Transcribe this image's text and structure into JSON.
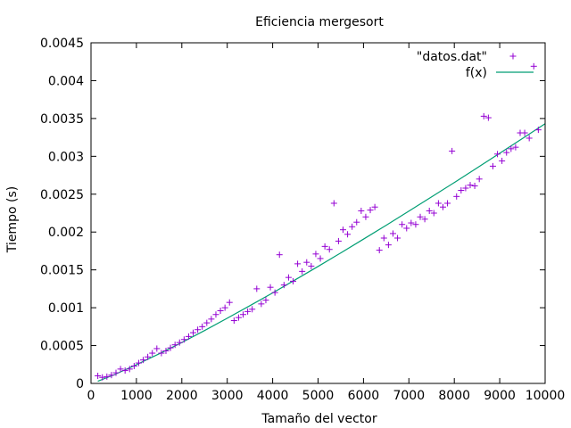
{
  "chart_data": {
    "type": "scatter",
    "title": "Eficiencia mergesort",
    "xlabel": "Tamaño del vector",
    "ylabel": "Tiempo (s)",
    "xlim": [
      0,
      10000
    ],
    "ylim": [
      0,
      0.0045
    ],
    "xticks": [
      0,
      1000,
      2000,
      3000,
      4000,
      5000,
      6000,
      7000,
      8000,
      9000,
      10000
    ],
    "xtick_labels": [
      "0",
      "1000",
      "2000",
      "3000",
      "4000",
      "5000",
      "6000",
      "7000",
      "8000",
      "9000",
      "10000"
    ],
    "yticks": [
      0,
      0.0005,
      0.001,
      0.0015,
      0.002,
      0.0025,
      0.003,
      0.0035,
      0.004,
      0.0045
    ],
    "ytick_labels": [
      "0",
      "0.0005",
      "0.001",
      "0.0015",
      "0.002",
      "0.0025",
      "0.003",
      "0.0035",
      "0.004",
      "0.0045"
    ],
    "grid": false,
    "legend_position": "top-right",
    "series": [
      {
        "name": "\"datos.dat\"",
        "type": "scatter",
        "marker": "+",
        "color": "#9400d3",
        "points": [
          [
            150,
            0.0001
          ],
          [
            250,
            8e-05
          ],
          [
            350,
            9e-05
          ],
          [
            450,
            0.00011
          ],
          [
            550,
            0.00014
          ],
          [
            650,
            0.00019
          ],
          [
            750,
            0.00017
          ],
          [
            850,
            0.00019
          ],
          [
            950,
            0.00023
          ],
          [
            1050,
            0.00027
          ],
          [
            1150,
            0.00031
          ],
          [
            1250,
            0.00035
          ],
          [
            1350,
            0.0004
          ],
          [
            1450,
            0.00046
          ],
          [
            1550,
            0.0004
          ],
          [
            1650,
            0.00043
          ],
          [
            1750,
            0.00047
          ],
          [
            1850,
            0.00051
          ],
          [
            1950,
            0.00054
          ],
          [
            2050,
            0.00058
          ],
          [
            2150,
            0.00062
          ],
          [
            2250,
            0.00067
          ],
          [
            2350,
            0.00071
          ],
          [
            2450,
            0.00075
          ],
          [
            2550,
            0.0008
          ],
          [
            2650,
            0.00085
          ],
          [
            2750,
            0.00091
          ],
          [
            2850,
            0.00096
          ],
          [
            2950,
            0.001
          ],
          [
            3050,
            0.00107
          ],
          [
            3150,
            0.00083
          ],
          [
            3250,
            0.00087
          ],
          [
            3350,
            0.00091
          ],
          [
            3450,
            0.00095
          ],
          [
            3550,
            0.00098
          ],
          [
            3650,
            0.00125
          ],
          [
            3750,
            0.00105
          ],
          [
            3850,
            0.0011
          ],
          [
            3950,
            0.00127
          ],
          [
            4050,
            0.0012
          ],
          [
            4150,
            0.0017
          ],
          [
            4250,
            0.0013
          ],
          [
            4350,
            0.0014
          ],
          [
            4450,
            0.00135
          ],
          [
            4550,
            0.00158
          ],
          [
            4650,
            0.00148
          ],
          [
            4750,
            0.0016
          ],
          [
            4850,
            0.00155
          ],
          [
            4950,
            0.00171
          ],
          [
            5050,
            0.00165
          ],
          [
            5150,
            0.00181
          ],
          [
            5250,
            0.00177
          ],
          [
            5350,
            0.00238
          ],
          [
            5450,
            0.00188
          ],
          [
            5550,
            0.00203
          ],
          [
            5650,
            0.00197
          ],
          [
            5750,
            0.00207
          ],
          [
            5850,
            0.00213
          ],
          [
            5950,
            0.00228
          ],
          [
            6050,
            0.0022
          ],
          [
            6150,
            0.00229
          ],
          [
            6250,
            0.00233
          ],
          [
            6350,
            0.00176
          ],
          [
            6450,
            0.00192
          ],
          [
            6550,
            0.00183
          ],
          [
            6650,
            0.00198
          ],
          [
            6750,
            0.00192
          ],
          [
            6850,
            0.0021
          ],
          [
            6950,
            0.00205
          ],
          [
            7050,
            0.00212
          ],
          [
            7150,
            0.0021
          ],
          [
            7250,
            0.0022
          ],
          [
            7350,
            0.00217
          ],
          [
            7450,
            0.00228
          ],
          [
            7550,
            0.00225
          ],
          [
            7650,
            0.00238
          ],
          [
            7750,
            0.00233
          ],
          [
            7850,
            0.00238
          ],
          [
            7950,
            0.00307
          ],
          [
            8050,
            0.00247
          ],
          [
            8150,
            0.00255
          ],
          [
            8250,
            0.00258
          ],
          [
            8350,
            0.00262
          ],
          [
            8450,
            0.00261
          ],
          [
            8550,
            0.0027
          ],
          [
            8650,
            0.00353
          ],
          [
            8750,
            0.00351
          ],
          [
            8850,
            0.00287
          ],
          [
            8950,
            0.00303
          ],
          [
            9050,
            0.00294
          ],
          [
            9150,
            0.00305
          ],
          [
            9250,
            0.0031
          ],
          [
            9350,
            0.00312
          ],
          [
            9450,
            0.00331
          ],
          [
            9550,
            0.00331
          ],
          [
            9650,
            0.00324
          ],
          [
            9750,
            0.00419
          ],
          [
            9850,
            0.00335
          ]
        ]
      },
      {
        "name": "f(x)",
        "type": "line",
        "color": "#009e73",
        "points": [
          [
            150,
            2.8e-05
          ],
          [
            500,
            0.000112
          ],
          [
            1000,
            0.000247
          ],
          [
            1500,
            0.000391
          ],
          [
            2000,
            0.000541
          ],
          [
            2500,
            0.000699
          ],
          [
            3000,
            0.000861
          ],
          [
            3500,
            0.001027
          ],
          [
            4000,
            0.001196
          ],
          [
            4500,
            0.00137
          ],
          [
            5000,
            0.001546
          ],
          [
            5500,
            0.001725
          ],
          [
            6000,
            0.001906
          ],
          [
            6500,
            0.00209
          ],
          [
            7000,
            0.002276
          ],
          [
            7500,
            0.002464
          ],
          [
            8000,
            0.002654
          ],
          [
            8500,
            0.002846
          ],
          [
            9000,
            0.00304
          ],
          [
            9500,
            0.003235
          ],
          [
            10000,
            0.003432
          ]
        ]
      }
    ]
  }
}
